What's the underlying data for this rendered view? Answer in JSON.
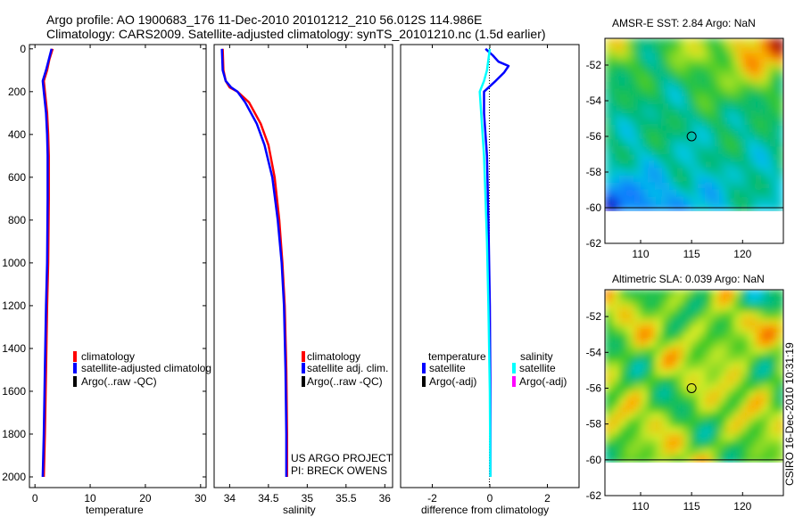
{
  "header": {
    "line1": "Argo profile: AO 1900683_176 11-Dec-2010 20101212_210 56.012S 114.986E",
    "line2": "Climatology: CARS2009. Satellite-adjusted climatology: synTS_20101210.nc (1.5d earlier)"
  },
  "side_label": "CSIRO 16-Dec-2010 10:31:19",
  "colors": {
    "climatology": "#ff0000",
    "satellite": "#0000ff",
    "argo": "#000000",
    "salinity_satellite": "#00ffff",
    "salinity_argo": "#ff00ff"
  },
  "chart_data": [
    {
      "type": "line",
      "xlabel": "temperature",
      "ylabel": "",
      "xlim": [
        -1,
        31
      ],
      "ylim": [
        2050,
        -20
      ],
      "xticks": [
        0,
        10,
        20,
        30
      ],
      "yticks": [
        0,
        200,
        400,
        600,
        800,
        1000,
        1200,
        1400,
        1600,
        1800,
        2000
      ],
      "legend_items": [
        "climatology",
        "satellite-adjusted climatolog",
        "Argo(..raw -QC)"
      ],
      "series": [
        {
          "name": "climatology",
          "color": "#ff0000",
          "x": [
            3.2,
            2.6,
            2.2,
            1.6,
            1.8,
            2.2,
            2.4,
            2.5,
            2.5,
            2.4,
            2.2,
            2.0,
            1.8,
            1.6
          ],
          "y": [
            0,
            50,
            100,
            150,
            200,
            300,
            400,
            500,
            700,
            1000,
            1200,
            1500,
            1800,
            2000
          ]
        },
        {
          "name": "satellite-adjusted climatolog",
          "color": "#0000ff",
          "x": [
            3.0,
            2.5,
            2.0,
            1.4,
            1.6,
            2.0,
            2.2,
            2.3,
            2.3,
            2.2,
            2.0,
            1.8,
            1.6,
            1.4
          ],
          "y": [
            0,
            50,
            100,
            150,
            200,
            300,
            400,
            500,
            700,
            1000,
            1200,
            1500,
            1800,
            2000
          ]
        }
      ]
    },
    {
      "type": "line",
      "xlabel": "salinity",
      "ylabel": "",
      "xlim": [
        33.8,
        36.1
      ],
      "ylim": [
        2050,
        -20
      ],
      "xticks": [
        34,
        34.5,
        35,
        35.5,
        36
      ],
      "yticks": [],
      "legend_items": [
        "climatology",
        "satellite adj. clim.",
        "Argo(..raw -QC)"
      ],
      "note_lines": [
        "US ARGO PROJECT",
        "PI: BRECK OWENS"
      ],
      "series": [
        {
          "name": "climatology",
          "color": "#ff0000",
          "x": [
            33.91,
            33.92,
            33.95,
            34.0,
            34.1,
            34.25,
            34.4,
            34.5,
            34.58,
            34.64,
            34.68,
            34.71,
            34.73,
            34.74,
            34.74
          ],
          "y": [
            0,
            100,
            150,
            180,
            200,
            250,
            350,
            450,
            600,
            800,
            1000,
            1200,
            1500,
            1800,
            2000
          ]
        },
        {
          "name": "satellite adj. clim.",
          "color": "#0000ff",
          "x": [
            33.9,
            33.91,
            33.95,
            34.02,
            34.1,
            34.2,
            34.35,
            34.45,
            34.55,
            34.62,
            34.67,
            34.7,
            34.72,
            34.73,
            34.73
          ],
          "y": [
            0,
            100,
            150,
            180,
            200,
            250,
            350,
            450,
            600,
            800,
            1000,
            1200,
            1500,
            1800,
            2000
          ]
        }
      ]
    },
    {
      "type": "line",
      "xlabel": "difference from climatology",
      "ylabel": "",
      "xlim": [
        -3.1,
        3.1
      ],
      "ylim": [
        2050,
        -20
      ],
      "xticks": [
        -2,
        0,
        2
      ],
      "yticks": [],
      "legend_items": [
        "temperature",
        "satellite",
        "Argo(-adj)",
        "salinity",
        "satellite",
        "Argo(-adj)"
      ],
      "series": [
        {
          "name": "satellite",
          "group": "temperature",
          "color": "#0000ff",
          "x": [
            -0.15,
            0.1,
            0.3,
            0.65,
            0.5,
            0.2,
            -0.2,
            -0.2,
            -0.1,
            -0.05,
            0.0,
            0.02,
            0.02
          ],
          "y": [
            0,
            30,
            60,
            80,
            110,
            150,
            200,
            300,
            500,
            800,
            1200,
            1600,
            2000
          ]
        },
        {
          "name": "satellite",
          "group": "salinity",
          "color": "#00ffff",
          "x": [
            0.0,
            -0.05,
            -0.1,
            -0.2,
            -0.35,
            -0.3,
            -0.2,
            -0.15,
            -0.1,
            -0.05,
            0.0,
            0.02
          ],
          "y": [
            0,
            50,
            100,
            150,
            200,
            300,
            500,
            700,
            900,
            1200,
            1600,
            2000
          ]
        }
      ]
    },
    {
      "type": "heatmap",
      "title": "AMSR-E SST: 2.84 Argo: NaN",
      "xlim": [
        106.5,
        124
      ],
      "ylim": [
        -62,
        -50.5
      ],
      "data_ylim": [
        -60,
        -50.5
      ],
      "xticks": [
        110,
        115,
        120
      ],
      "yticks": [
        -52,
        -54,
        -56,
        -58,
        -60,
        -62
      ],
      "marker": [
        115,
        -56
      ]
    },
    {
      "type": "heatmap",
      "title": "Altimetric SLA: 0.039 Argo: NaN",
      "xlim": [
        106.5,
        124
      ],
      "ylim": [
        -62,
        -50.5
      ],
      "data_ylim": [
        -60,
        -50.5
      ],
      "xticks": [
        110,
        115,
        120
      ],
      "yticks": [
        -52,
        -54,
        -56,
        -58,
        -60,
        -62
      ],
      "marker": [
        115,
        -56
      ]
    }
  ]
}
